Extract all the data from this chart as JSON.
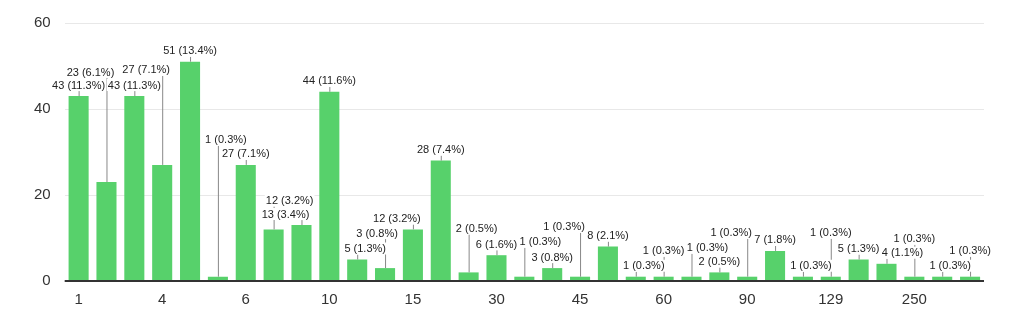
{
  "chart_data": {
    "type": "bar",
    "categories": [
      "1",
      null,
      null,
      "4",
      null,
      null,
      "6",
      null,
      null,
      "10",
      null,
      null,
      "15",
      null,
      null,
      "30",
      null,
      null,
      "45",
      null,
      null,
      "60",
      null,
      null,
      "90",
      null,
      null,
      "129",
      null,
      null,
      "250",
      null,
      null
    ],
    "values": [
      43,
      23,
      43,
      27,
      51,
      1,
      27,
      12,
      13,
      44,
      5,
      3,
      12,
      28,
      2,
      6,
      1,
      3,
      1,
      8,
      1,
      1,
      1,
      2,
      1,
      7,
      1,
      1,
      5,
      4,
      1,
      1,
      1
    ],
    "value_labels": [
      "43 (11.3%)",
      "23 (6.1%)",
      "43 (11.3%)",
      "27 (7.1%)",
      "51 (13.4%)",
      "1 (0.3%)",
      "27 (7.1%)",
      "12 (3.2%)",
      "13 (3.4%)",
      "44 (11.6%)",
      "5 (1.3%)",
      "3 (0.8%)",
      "12 (3.2%)",
      "28 (7.4%)",
      "2 (0.5%)",
      "6 (1.6%)",
      "1 (0.3%)",
      "3 (0.8%)",
      "1 (0.3%)",
      "8 (2.1%)",
      "1 (0.3%)",
      "1 (0.3%)",
      "1 (0.3%)",
      "2 (0.5%)",
      "1 (0.3%)",
      "7 (1.8%)",
      "1 (0.3%)",
      "1 (0.3%)",
      "5 (1.3%)",
      "4 (1.1%)",
      "1 (0.3%)",
      "1 (0.3%)",
      "1 (0.3%)"
    ],
    "color": "#57d16b",
    "ylim": [
      0,
      60
    ],
    "yticks": [
      0,
      20,
      40,
      60
    ],
    "grid": "y"
  }
}
